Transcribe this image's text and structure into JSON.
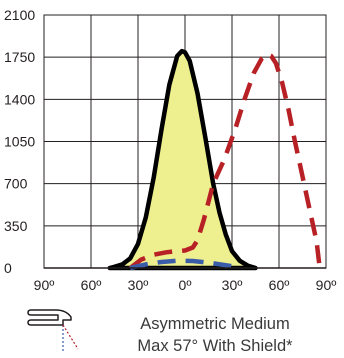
{
  "chart_data": {
    "type": "line",
    "y_ticks": [
      "2100",
      "1750",
      "1400",
      "1050",
      "700",
      "350",
      "0"
    ],
    "y_tick_values": [
      2100,
      1750,
      1400,
      1050,
      700,
      350,
      0
    ],
    "x_ticks": [
      "90º",
      "60º",
      "30º",
      "0º",
      "30º",
      "60º",
      "90º"
    ],
    "x_tick_values": [
      -90,
      -60,
      -30,
      0,
      30,
      60,
      90
    ],
    "ylim": [
      0,
      2100
    ],
    "xlim": [
      -90,
      90
    ],
    "grid": true,
    "series": [
      {
        "style": "filled solid outline",
        "fill": "#eef08f",
        "stroke": "#000000",
        "points": [
          [
            -48,
            0
          ],
          [
            -45,
            10
          ],
          [
            -40,
            30
          ],
          [
            -35,
            80
          ],
          [
            -30,
            200
          ],
          [
            -25,
            420
          ],
          [
            -20,
            750
          ],
          [
            -15,
            1150
          ],
          [
            -10,
            1520
          ],
          [
            -5,
            1760
          ],
          [
            -2,
            1800
          ],
          [
            0,
            1790
          ],
          [
            3,
            1720
          ],
          [
            8,
            1450
          ],
          [
            13,
            1080
          ],
          [
            18,
            700
          ],
          [
            22,
            460
          ],
          [
            26,
            280
          ],
          [
            30,
            140
          ],
          [
            35,
            60
          ],
          [
            40,
            20
          ],
          [
            45,
            0
          ]
        ]
      },
      {
        "style": "dashed",
        "stroke": "#b72126",
        "points": [
          [
            -35,
            0
          ],
          [
            -28,
            70
          ],
          [
            -20,
            110
          ],
          [
            -12,
            130
          ],
          [
            -5,
            140
          ],
          [
            0,
            145
          ],
          [
            5,
            170
          ],
          [
            8,
            230
          ],
          [
            12,
            400
          ],
          [
            18,
            700
          ],
          [
            25,
            900
          ],
          [
            32,
            1150
          ],
          [
            38,
            1400
          ],
          [
            44,
            1620
          ],
          [
            49,
            1740
          ],
          [
            52,
            1775
          ],
          [
            55,
            1760
          ],
          [
            58,
            1700
          ],
          [
            62,
            1540
          ],
          [
            66,
            1320
          ],
          [
            70,
            1060
          ],
          [
            75,
            760
          ],
          [
            80,
            460
          ],
          [
            84,
            220
          ],
          [
            86,
            0
          ]
        ]
      },
      {
        "style": "dashed",
        "stroke": "#3b5ca8",
        "points": [
          [
            -35,
            0
          ],
          [
            -25,
            30
          ],
          [
            -15,
            50
          ],
          [
            -5,
            60
          ],
          [
            0,
            60
          ],
          [
            5,
            58
          ],
          [
            15,
            45
          ],
          [
            25,
            25
          ],
          [
            32,
            10
          ],
          [
            35,
            0
          ]
        ]
      }
    ]
  },
  "caption": {
    "line1": "Asymmetric Medium",
    "line2": "Max 57° With Shield*"
  }
}
